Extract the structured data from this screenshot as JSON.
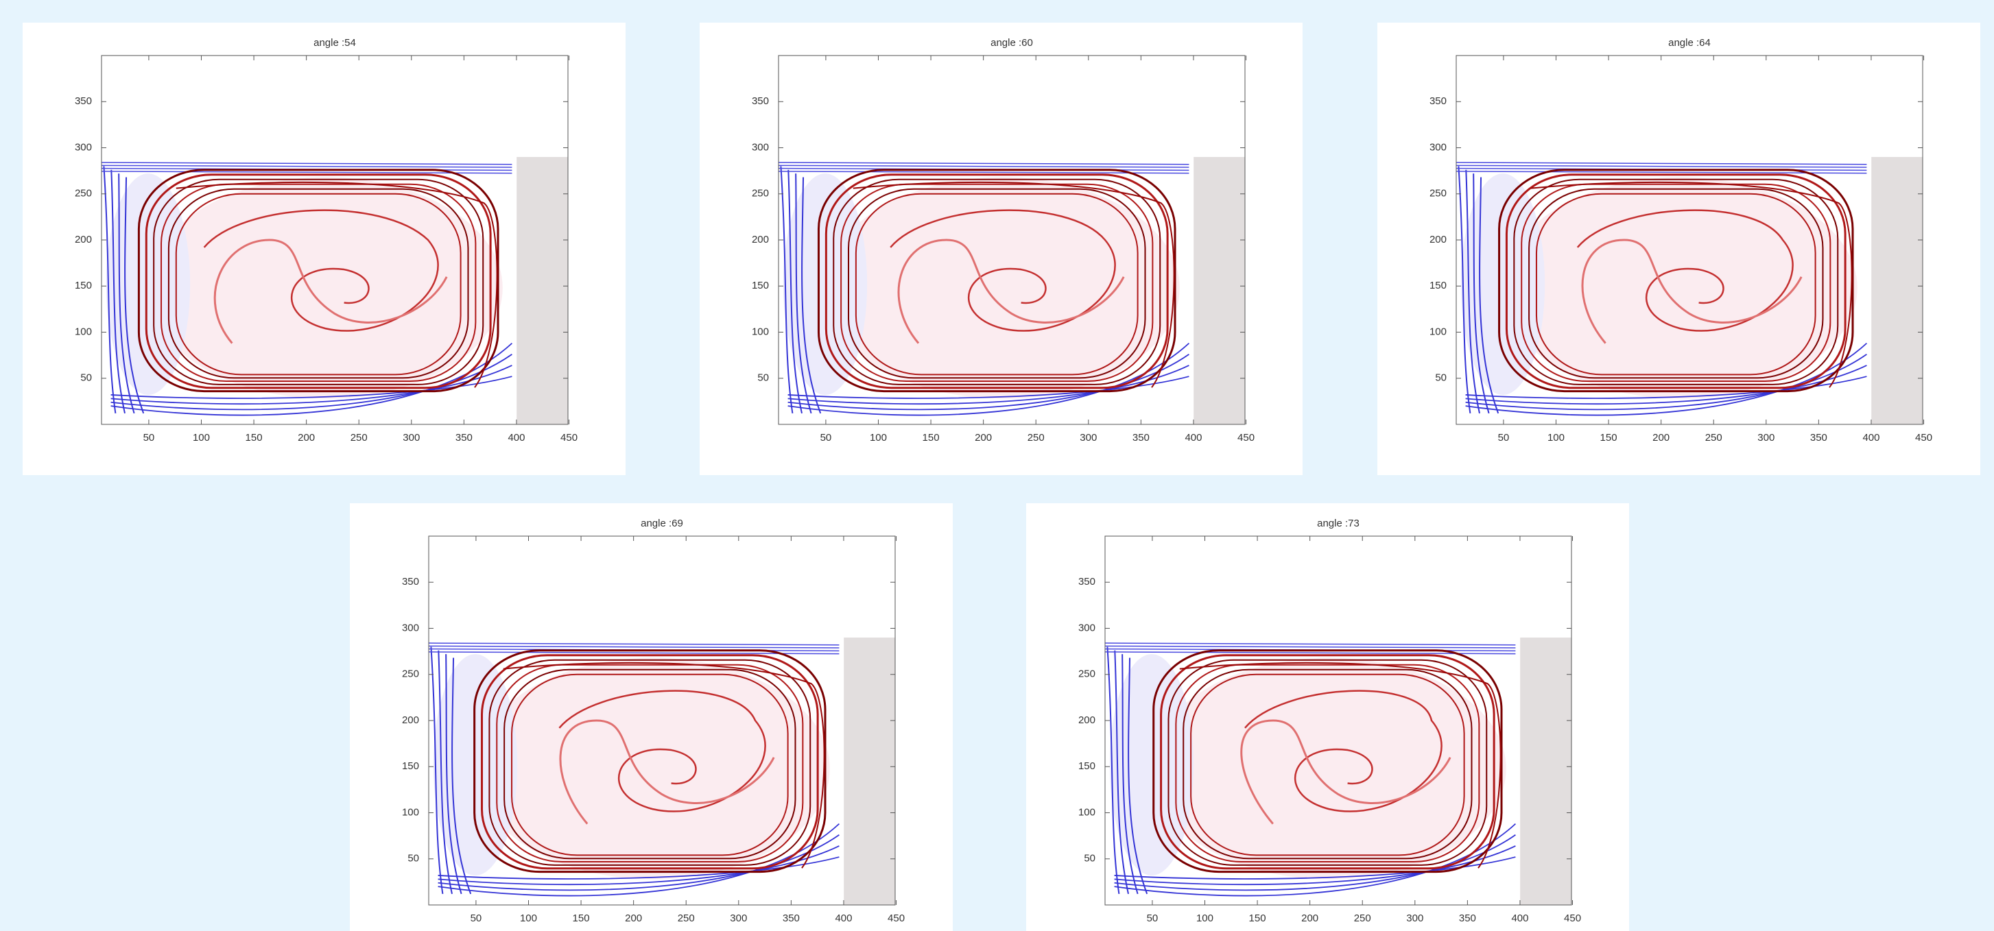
{
  "chart_data": [
    {
      "type": "image",
      "title": "angle :54",
      "xlim": [
        5,
        449
      ],
      "ylim": [
        0,
        400
      ],
      "xticks": [
        50,
        100,
        150,
        200,
        250,
        300,
        350,
        400,
        450
      ],
      "yticks": [
        50,
        100,
        150,
        200,
        250,
        300,
        350
      ]
    },
    {
      "type": "image",
      "title": "angle :60",
      "xlim": [
        5,
        449
      ],
      "ylim": [
        0,
        400
      ],
      "xticks": [
        50,
        100,
        150,
        200,
        250,
        300,
        350,
        400,
        450
      ],
      "yticks": [
        50,
        100,
        150,
        200,
        250,
        300,
        350
      ]
    },
    {
      "type": "image",
      "title": "angle :64",
      "xlim": [
        5,
        449
      ],
      "ylim": [
        0,
        400
      ],
      "xticks": [
        50,
        100,
        150,
        200,
        250,
        300,
        350,
        400,
        450
      ],
      "yticks": [
        50,
        100,
        150,
        200,
        250,
        300,
        350
      ]
    },
    {
      "type": "image",
      "title": "angle :69",
      "xlim": [
        5,
        449
      ],
      "ylim": [
        0,
        400
      ],
      "xticks": [
        50,
        100,
        150,
        200,
        250,
        300,
        350,
        400,
        450
      ],
      "yticks": [
        50,
        100,
        150,
        200,
        250,
        300,
        350
      ]
    },
    {
      "type": "image",
      "title": "angle :73",
      "xlim": [
        5,
        449
      ],
      "ylim": [
        0,
        400
      ],
      "xticks": [
        50,
        100,
        150,
        200,
        250,
        300,
        350,
        400,
        450
      ],
      "yticks": [
        50,
        100,
        150,
        200,
        250,
        300,
        350
      ]
    }
  ]
}
